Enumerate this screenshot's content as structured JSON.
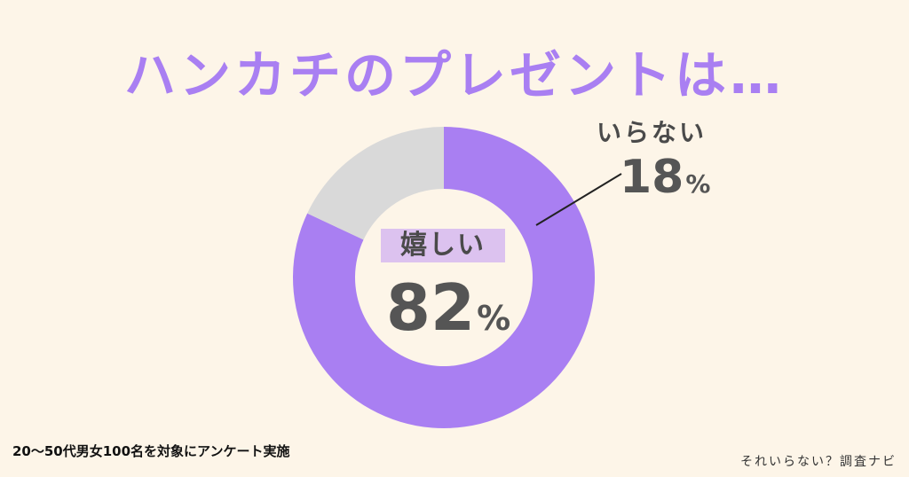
{
  "title": "ハンカチのプレゼントは…",
  "chart_data": {
    "type": "pie",
    "categories": [
      "嬉しい",
      "いらない"
    ],
    "values": [
      82,
      18
    ],
    "colors": [
      "#a97ff2",
      "#d9d9d9"
    ],
    "unit": "%"
  },
  "labels": {
    "main_label": "嬉しい",
    "main_value": "82",
    "secondary_label": "いらない",
    "secondary_value": "18",
    "unit": "%"
  },
  "footnote": "20〜50代男女100名を対象にアンケート実施",
  "source": "それいらない？調査ナビ"
}
